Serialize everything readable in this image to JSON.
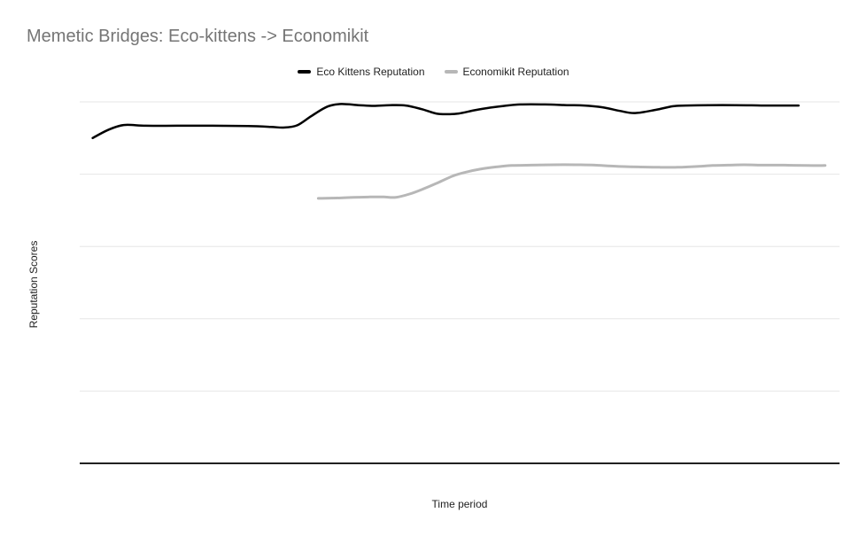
{
  "theme": {
    "background": "#ffffff",
    "title_color": "#757575",
    "text_color": "#222222",
    "gridline_color": "#e6e6e6",
    "axis_line_color": "#212121"
  },
  "chart_data": {
    "type": "line",
    "smoothed": true,
    "title": "Memetic Bridges: Eco-kittens -> Economikit",
    "xlabel": "Time period",
    "ylabel": "Reputation Scores",
    "ylim": [
      0,
      100
    ],
    "y_gridline_step": 20,
    "grid": "horizontal-only",
    "axis_tick_labels_visible": false,
    "legend_position": "top-center",
    "x_units": "percent_of_time_axis",
    "series": [
      {
        "name": "Eco Kittens Reputation",
        "color": "#000000",
        "points": [
          [
            1.7,
            90.0
          ],
          [
            3.7,
            92.2
          ],
          [
            5.8,
            93.6
          ],
          [
            8.7,
            93.4
          ],
          [
            12.8,
            93.4
          ],
          [
            17.5,
            93.4
          ],
          [
            22.1,
            93.3
          ],
          [
            25.1,
            93.1
          ],
          [
            26.8,
            92.9
          ],
          [
            28.6,
            93.5
          ],
          [
            30.5,
            96.1
          ],
          [
            32.6,
            98.7
          ],
          [
            34.4,
            99.4
          ],
          [
            36.7,
            99.1
          ],
          [
            38.7,
            98.9
          ],
          [
            40.8,
            99.1
          ],
          [
            42.9,
            99.0
          ],
          [
            45.0,
            98.0
          ],
          [
            46.9,
            96.8
          ],
          [
            48.3,
            96.6
          ],
          [
            49.9,
            96.8
          ],
          [
            52.0,
            97.7
          ],
          [
            54.0,
            98.4
          ],
          [
            55.9,
            98.9
          ],
          [
            58.0,
            99.3
          ],
          [
            61.2,
            99.3
          ],
          [
            64.1,
            99.1
          ],
          [
            66.4,
            99.0
          ],
          [
            68.8,
            98.5
          ],
          [
            71.1,
            97.5
          ],
          [
            73.1,
            96.9
          ],
          [
            75.8,
            97.8
          ],
          [
            78.1,
            98.8
          ],
          [
            79.8,
            99.0
          ],
          [
            82.8,
            99.1
          ],
          [
            86.3,
            99.1
          ],
          [
            89.7,
            99.0
          ],
          [
            92.7,
            99.0
          ],
          [
            94.6,
            99.0
          ]
        ]
      },
      {
        "name": "Economikit Reputation",
        "color": "#b7b7b7",
        "points": [
          [
            31.4,
            73.3
          ],
          [
            33.8,
            73.4
          ],
          [
            36.1,
            73.6
          ],
          [
            38.2,
            73.7
          ],
          [
            40.0,
            73.7
          ],
          [
            41.6,
            73.6
          ],
          [
            43.4,
            74.5
          ],
          [
            45.2,
            75.9
          ],
          [
            47.2,
            77.7
          ],
          [
            49.0,
            79.4
          ],
          [
            50.7,
            80.5
          ],
          [
            52.7,
            81.4
          ],
          [
            54.8,
            82.0
          ],
          [
            56.9,
            82.4
          ],
          [
            59.4,
            82.5
          ],
          [
            62.4,
            82.6
          ],
          [
            65.3,
            82.6
          ],
          [
            67.8,
            82.5
          ],
          [
            70.5,
            82.2
          ],
          [
            73.4,
            82.0
          ],
          [
            76.3,
            81.9
          ],
          [
            78.7,
            81.9
          ],
          [
            81.0,
            82.1
          ],
          [
            83.3,
            82.4
          ],
          [
            85.3,
            82.5
          ],
          [
            87.4,
            82.6
          ],
          [
            90.0,
            82.5
          ],
          [
            92.7,
            82.5
          ],
          [
            95.6,
            82.4
          ],
          [
            98.1,
            82.4
          ]
        ]
      }
    ]
  }
}
